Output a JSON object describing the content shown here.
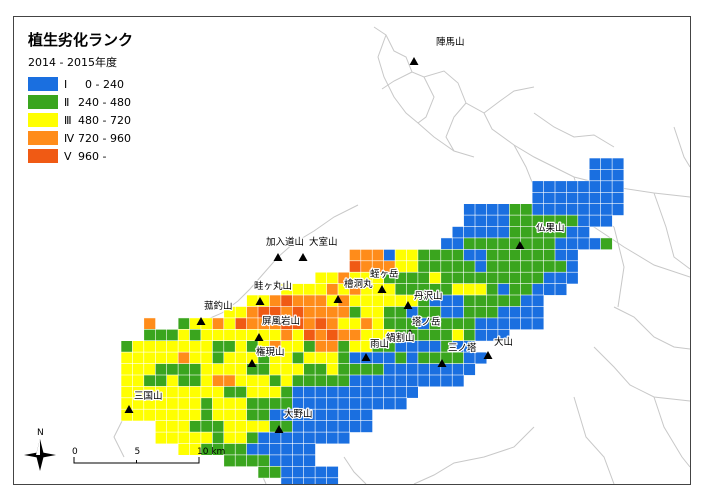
{
  "map": {
    "title": "植生劣化ランク",
    "period": "2014 - 2015年度",
    "legend": [
      {
        "rank": "Ⅰ",
        "range": "  0 - 240",
        "color": "#1a6fe0"
      },
      {
        "rank": "Ⅱ",
        "range": "240 - 480",
        "color": "#3aa51e"
      },
      {
        "rank": "Ⅲ",
        "range": "480 - 720",
        "color": "#ffff00"
      },
      {
        "rank": "Ⅳ",
        "range": "720 - 960",
        "color": "#ff8c1a"
      },
      {
        "rank": "Ⅴ",
        "range": "960 -",
        "color": "#f05a14"
      }
    ],
    "peaks": [
      "陣馬山",
      "仏果山",
      "加入道山",
      "大室山",
      "蛭ヶ岳",
      "檜洞丸",
      "畦ヶ丸山",
      "丹沢山",
      "菰釣山",
      "屏風岩山",
      "塔ノ岳",
      "鍋割山",
      "雨山",
      "三ノ塔",
      "大山",
      "権現山",
      "三国山",
      "大野山"
    ],
    "scale": {
      "ticks": [
        "0",
        "5",
        "10 km"
      ]
    },
    "north_label": "N"
  }
}
